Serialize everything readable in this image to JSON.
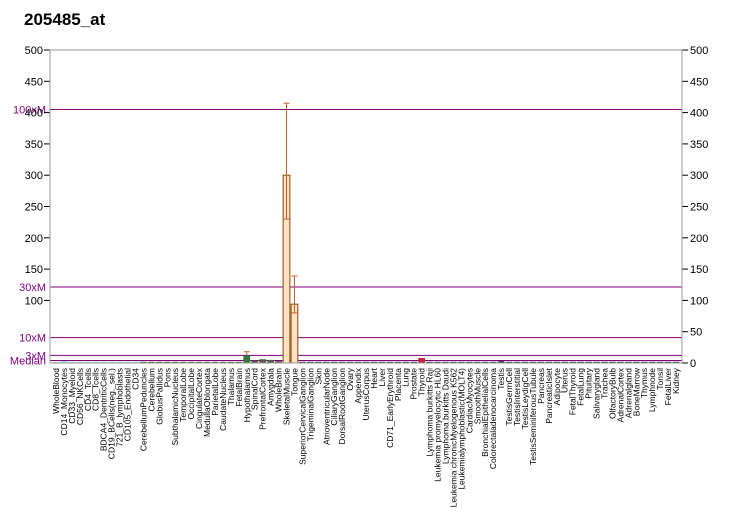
{
  "title": "205485_at",
  "chart_data": {
    "type": "bar",
    "title": "205485_at",
    "y_left_ticks": [
      500,
      450,
      400,
      350,
      300,
      250,
      200,
      150,
      100
    ],
    "y_right_ticks": [
      500,
      450,
      400,
      350,
      300,
      250,
      200,
      150,
      100,
      50,
      0
    ],
    "ylim": [
      0,
      500
    ],
    "reference_lines": [
      {
        "label": "100xM",
        "value": 405
      },
      {
        "label": "30xM",
        "value": 121.5
      },
      {
        "label": "10xM",
        "value": 40.5
      },
      {
        "label": "3xM",
        "value": 12.2
      },
      {
        "label": "Median",
        "value": 4
      }
    ],
    "categories": [
      "WholeBlood",
      "CD14_Monocytes",
      "CD33_Myeloid",
      "CD56_NKCells",
      "CD4_Tcells",
      "CD8_Tcells",
      "BDCA4_DentriticCells",
      "CD19_BCells(neg._sel.)",
      "721_B_lymphoblasts",
      "CD105_Endothelial",
      "CD34",
      "CerebellumPeduncles",
      "Cerebellum",
      "GlobusPallidus",
      "Pons",
      "SubthalamicNucleus",
      "TemporalLobe",
      "OccipitalLobe",
      "CingulateCortex",
      "MedullaOblongata",
      "ParietalLobe",
      "CaudateNucleus",
      "Thalamus",
      "FetalBrain",
      "Hypothalamus",
      "SpinalCord",
      "PrefrontalCortex",
      "Amygdala",
      "WholeBrain",
      "SkeletalMuscle",
      "Tongue",
      "SuperiorCervicalGanglion",
      "TrigeminalGanglion",
      "Skin",
      "AtrioventricularNode",
      "CiliaryGanglion",
      "DorsalRootGanglion",
      "Ovary",
      "Appendix",
      "UterusCorpus",
      "Heart",
      "Liver",
      "CD71_EarlyErythroid",
      "Placenta",
      "Lung",
      "Prostate",
      "Thyroid",
      "Lymphoma burkitts Raji",
      "Leukemia promyelocytic HL60",
      "Lymphoma burkitts Daudi",
      "Leukemia chronicMyelogenous K562",
      "Leukemialymphoblastic(MOLT4)",
      "CardiacMyocytes",
      "SmoothMuscle",
      "BronchialEpithelialCells",
      "Colorectaladenocarcinoma",
      "Testis",
      "TestisGermCell",
      "TestisInterstitial",
      "TestisLeydigCell",
      "TestisSeminiferousTubule",
      "Pancreas",
      "PancreaticIslet",
      "Adipocyte",
      "Uterus",
      "FetalThyroid",
      "FetalLung",
      "Pituitary",
      "Salivarygland",
      "Trachea",
      "OlfactoryBulb",
      "AdrenalCortex",
      "Adrenalgland",
      "BoneMarrow",
      "Thymus",
      "Lymphnode",
      "Tonsil",
      "FetalLiver",
      "Kidney"
    ],
    "values": [
      2,
      3,
      2,
      2,
      2,
      2,
      2,
      2,
      2,
      2,
      2,
      2,
      2,
      2,
      2,
      2,
      2,
      2,
      2,
      2,
      2,
      2,
      2,
      2,
      12,
      4,
      6,
      5,
      3,
      300,
      94,
      2,
      2,
      2,
      2,
      2,
      2,
      2,
      2,
      2,
      2,
      2,
      2,
      2,
      2,
      2,
      8,
      2,
      2,
      2,
      2,
      2,
      2,
      2,
      2,
      2,
      3,
      2,
      2,
      2,
      2,
      2,
      2,
      2,
      2,
      2,
      2,
      2,
      2,
      2,
      2,
      2,
      2,
      2,
      2,
      2,
      2,
      2,
      2
    ],
    "errors": [
      {
        "index": 24,
        "high": 18
      },
      {
        "index": 29,
        "low": 230,
        "high": 415
      },
      {
        "index": 30,
        "low": 80,
        "high": 139
      }
    ],
    "color_groups": [
      {
        "color": "#9ad9f0",
        "start": 0,
        "end": 10
      },
      {
        "color": "#5a5a46",
        "start": 11,
        "end": 28
      },
      {
        "color": "#ffe2c8",
        "start": 29,
        "end": 30
      },
      {
        "color": "#3a3a3a",
        "start": 31,
        "end": 79
      }
    ],
    "highlights": [
      {
        "index": 24,
        "color": "#2e7d3a"
      },
      {
        "index": 46,
        "color": "#cc1f3a"
      }
    ],
    "colors": {
      "reference_line": "#800080",
      "error_bar": "#c0602a",
      "bar_outline": "#8c4a00"
    },
    "grid": false,
    "legend": "none"
  }
}
